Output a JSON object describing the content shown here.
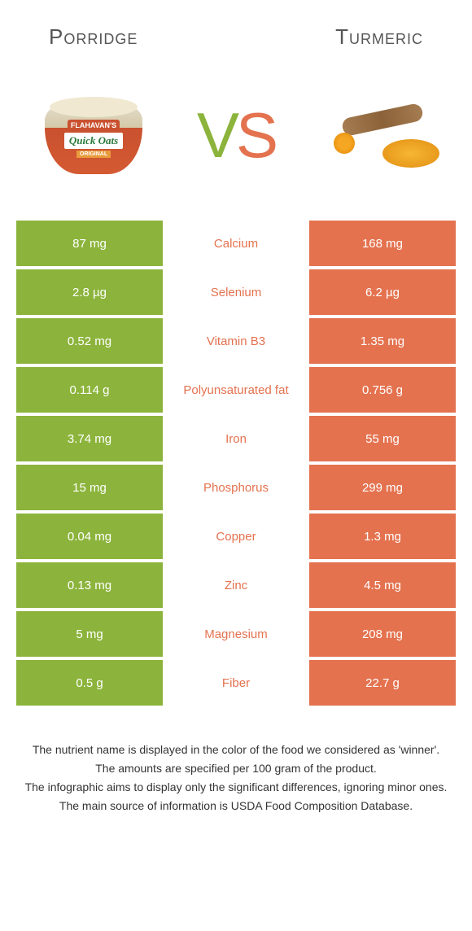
{
  "colors": {
    "left_bg": "#8cb43c",
    "right_bg": "#e4724f",
    "left_text": "#ffffff",
    "right_text": "#ffffff",
    "mid_left_color": "#8cb43c",
    "mid_right_color": "#e4724f",
    "vs_v_color": "#8cb43c",
    "vs_s_color": "#e4724f"
  },
  "header": {
    "left_title": "Porridge",
    "right_title": "Turmeric"
  },
  "vs": {
    "v": "V",
    "s": "S"
  },
  "porridge_labels": {
    "brand": "FLAHAVAN'S",
    "product": "Quick Oats",
    "variant": "ORIGINAL"
  },
  "rows": [
    {
      "left": "87 mg",
      "name": "Calcium",
      "right": "168 mg",
      "winner": "right"
    },
    {
      "left": "2.8 µg",
      "name": "Selenium",
      "right": "6.2 µg",
      "winner": "right"
    },
    {
      "left": "0.52 mg",
      "name": "Vitamin B3",
      "right": "1.35 mg",
      "winner": "right"
    },
    {
      "left": "0.114 g",
      "name": "Polyunsaturated fat",
      "right": "0.756 g",
      "winner": "right"
    },
    {
      "left": "3.74 mg",
      "name": "Iron",
      "right": "55 mg",
      "winner": "right"
    },
    {
      "left": "15 mg",
      "name": "Phosphorus",
      "right": "299 mg",
      "winner": "right"
    },
    {
      "left": "0.04 mg",
      "name": "Copper",
      "right": "1.3 mg",
      "winner": "right"
    },
    {
      "left": "0.13 mg",
      "name": "Zinc",
      "right": "4.5 mg",
      "winner": "right"
    },
    {
      "left": "5 mg",
      "name": "Magnesium",
      "right": "208 mg",
      "winner": "right"
    },
    {
      "left": "0.5 g",
      "name": "Fiber",
      "right": "22.7 g",
      "winner": "right"
    }
  ],
  "footnotes": {
    "line1": "The nutrient name is displayed in the color of the food we considered as 'winner'.",
    "line2": "The amounts are specified per 100 gram of the product.",
    "line3": "The infographic aims to display only the significant differences, ignoring minor ones.",
    "line4": "The main source of information is USDA Food Composition Database."
  }
}
